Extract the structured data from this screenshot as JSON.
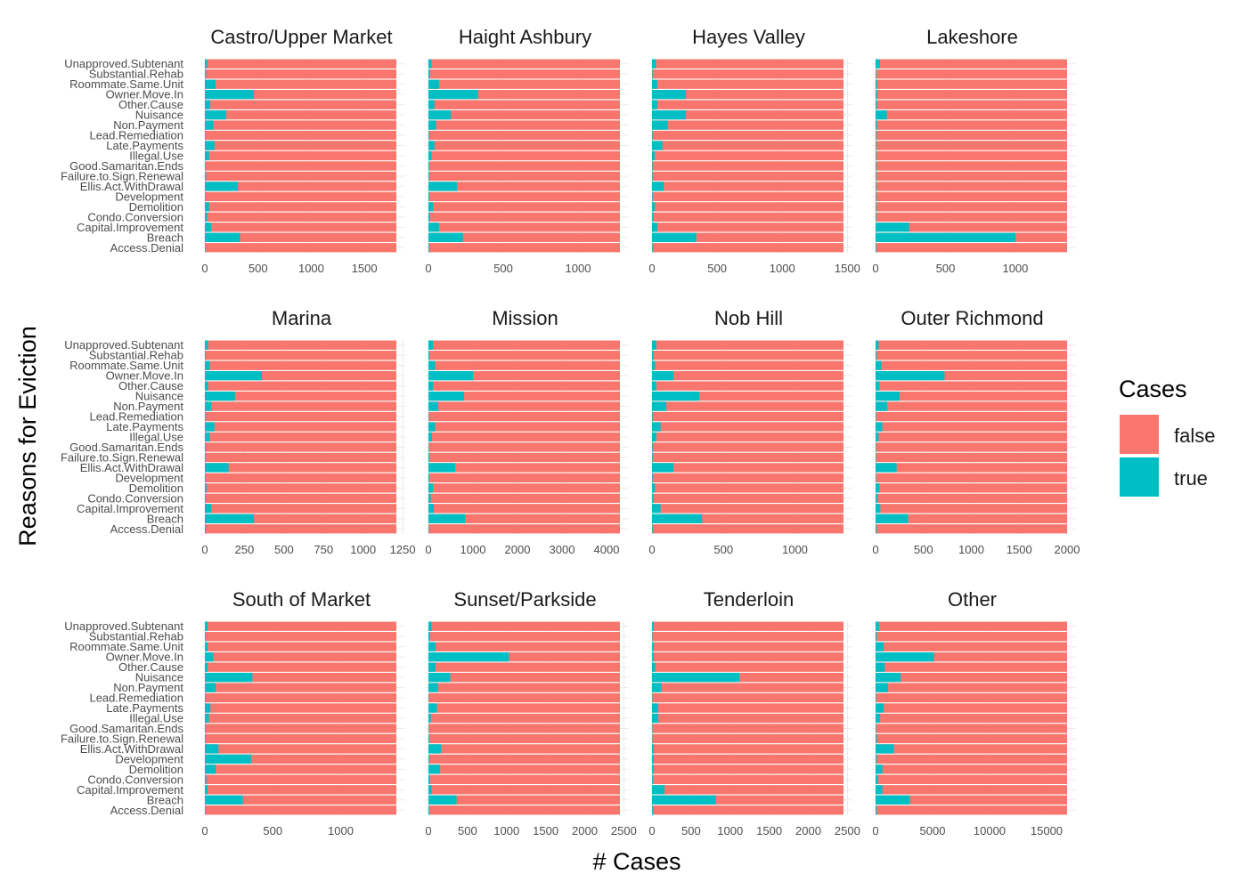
{
  "chart_data": {
    "type": "bar",
    "orientation": "horizontal",
    "stacked": true,
    "xlabel": "# Cases",
    "ylabel": "Reasons for Eviction",
    "categories": [
      "Unapproved.Subtenant",
      "Substantial.Rehab",
      "Roommate.Same.Unit",
      "Owner.Move.In",
      "Other.Cause",
      "Nuisance",
      "Non.Payment",
      "Lead.Remediation",
      "Late.Payments",
      "Illegal.Use",
      "Good.Samaritan.Ends",
      "Failure.to.Sign.Renewal",
      "Ellis.Act.WithDrawal",
      "Development",
      "Demolition",
      "Condo.Conversion",
      "Capital.Improvement",
      "Breach",
      "Access.Denial"
    ],
    "legend": {
      "title": "Cases",
      "position": "right",
      "items": [
        {
          "label": "false",
          "color": "#F8766D"
        },
        {
          "label": "true",
          "color": "#00BFC4"
        }
      ]
    },
    "grid": true,
    "panels": [
      {
        "title": "Castro/Upper Market",
        "total": 1800,
        "xlim": [
          0,
          1800
        ],
        "ticks": [
          0,
          500,
          1000,
          1500
        ],
        "true_values": [
          20,
          10,
          100,
          460,
          50,
          200,
          80,
          5,
          90,
          40,
          5,
          10,
          310,
          5,
          40,
          20,
          60,
          330,
          5
        ]
      },
      {
        "title": "Haight Ashbury",
        "total": 1280,
        "xlim": [
          0,
          1280
        ],
        "ticks": [
          0,
          500,
          1000
        ],
        "true_values": [
          20,
          10,
          70,
          330,
          40,
          150,
          50,
          5,
          40,
          20,
          5,
          5,
          190,
          5,
          30,
          10,
          70,
          230,
          5
        ]
      },
      {
        "title": "Hayes Valley",
        "total": 1470,
        "xlim": [
          0,
          1470
        ],
        "ticks": [
          0,
          500,
          1000,
          1500
        ],
        "true_values": [
          30,
          5,
          40,
          260,
          40,
          260,
          120,
          5,
          80,
          20,
          5,
          5,
          90,
          5,
          20,
          10,
          40,
          340,
          5
        ]
      },
      {
        "title": "Lakeshore",
        "total": 1370,
        "xlim": [
          0,
          1370
        ],
        "ticks": [
          0,
          500,
          1000
        ],
        "true_values": [
          30,
          5,
          10,
          10,
          10,
          80,
          10,
          5,
          5,
          5,
          5,
          5,
          5,
          5,
          5,
          5,
          240,
          1000,
          5
        ]
      },
      {
        "title": "Marina",
        "total": 1210,
        "xlim": [
          0,
          1210
        ],
        "ticks": [
          0,
          250,
          500,
          750,
          1000,
          1250
        ],
        "true_values": [
          20,
          5,
          30,
          360,
          20,
          190,
          40,
          5,
          60,
          30,
          5,
          5,
          150,
          5,
          10,
          5,
          40,
          310,
          5
        ]
      },
      {
        "title": "Mission",
        "total": 4300,
        "xlim": [
          0,
          4300
        ],
        "ticks": [
          0,
          1000,
          2000,
          3000,
          4000
        ],
        "true_values": [
          100,
          20,
          150,
          1000,
          100,
          800,
          220,
          10,
          150,
          80,
          10,
          20,
          600,
          20,
          100,
          50,
          120,
          820,
          10
        ]
      },
      {
        "title": "Nob Hill",
        "total": 1340,
        "xlim": [
          0,
          1340
        ],
        "ticks": [
          0,
          500,
          1000
        ],
        "true_values": [
          30,
          10,
          20,
          150,
          30,
          330,
          100,
          5,
          60,
          30,
          5,
          5,
          150,
          5,
          20,
          10,
          60,
          350,
          5
        ]
      },
      {
        "title": "Outer Richmond",
        "total": 2000,
        "xlim": [
          0,
          2000
        ],
        "ticks": [
          0,
          500,
          1000,
          1500,
          2000
        ],
        "true_values": [
          30,
          10,
          60,
          720,
          40,
          250,
          120,
          5,
          70,
          30,
          5,
          5,
          220,
          5,
          40,
          20,
          50,
          340,
          10
        ]
      },
      {
        "title": "South of Market",
        "total": 1410,
        "xlim": [
          0,
          1410
        ],
        "ticks": [
          0,
          500,
          1000
        ],
        "true_values": [
          20,
          5,
          20,
          60,
          20,
          350,
          80,
          5,
          40,
          30,
          5,
          5,
          100,
          340,
          80,
          10,
          20,
          280,
          5
        ]
      },
      {
        "title": "Sunset/Parkside",
        "total": 2450,
        "xlim": [
          0,
          2450
        ],
        "ticks": [
          0,
          500,
          1000,
          1500,
          2000,
          2500
        ],
        "true_values": [
          40,
          20,
          90,
          1030,
          90,
          280,
          120,
          5,
          110,
          30,
          5,
          10,
          160,
          10,
          150,
          20,
          40,
          360,
          10
        ]
      },
      {
        "title": "Tenderloin",
        "total": 2450,
        "xlim": [
          0,
          2450
        ],
        "ticks": [
          0,
          500,
          1000,
          1500,
          2000,
          2500
        ],
        "true_values": [
          20,
          5,
          20,
          20,
          40,
          1120,
          120,
          5,
          80,
          80,
          5,
          5,
          20,
          20,
          20,
          10,
          160,
          820,
          10
        ]
      },
      {
        "title": "Other",
        "total": 16800,
        "xlim": [
          0,
          16800
        ],
        "ticks": [
          0,
          5000,
          10000,
          15000
        ],
        "true_values": [
          300,
          100,
          700,
          5100,
          800,
          2200,
          1100,
          50,
          700,
          400,
          50,
          100,
          1600,
          100,
          600,
          200,
          600,
          3000,
          100
        ]
      }
    ]
  }
}
